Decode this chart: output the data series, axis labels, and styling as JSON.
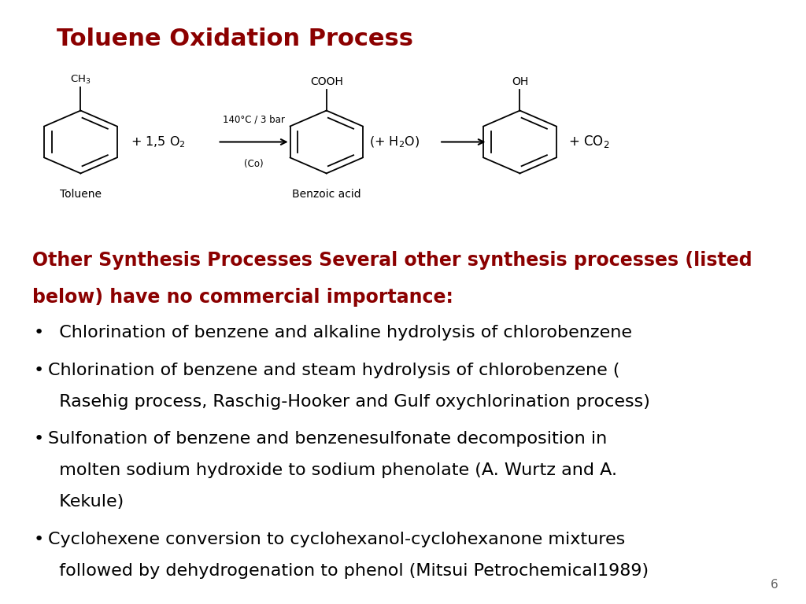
{
  "title": "Toluene Oxidation Process",
  "title_color": "#8B0000",
  "title_fontsize": 22,
  "bg_color": "#ffffff",
  "subtitle_color": "#8B0000",
  "subtitle_fontsize": 17,
  "subtitle_line1": "Other Synthesis Processes Several other synthesis processes (listed",
  "subtitle_line2": "below) have no commercial importance:",
  "bullet_color": "#000000",
  "bullet_fontsize": 16,
  "bullets": [
    [
      "  Chlorination of benzene and alkaline hydrolysis of chlorobenzene"
    ],
    [
      "Chlorination of benzene and steam hydrolysis of chlorobenzene (",
      "  Rasehig process, Raschig-Hooker and Gulf oxychlorination process)"
    ],
    [
      "Sulfonation of benzene and benzenesulfonate decomposition in",
      "  molten sodium hydroxide to sodium phenolate (A. Wurtz and A.",
      "  Kekule)"
    ],
    [
      "Cyclohexene conversion to cyclohexanol-cyclohexanone mixtures",
      "  followed by dehydrogenation to phenol (Mitsui Petrochemical1989)"
    ]
  ],
  "page_number": "6"
}
